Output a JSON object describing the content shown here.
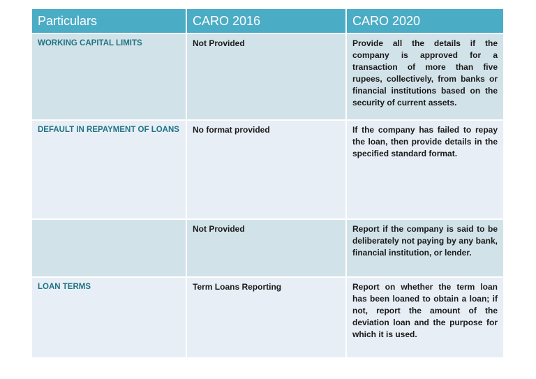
{
  "table": {
    "header": [
      "Particulars",
      "CARO 2016",
      "CARO 2020"
    ],
    "rows": [
      [
        "WORKING CAPITAL LIMITS",
        "Not Provided",
        "Provide all the details if the company is approved for a transaction of more than five rupees, collectively, from banks or financial institutions based on the security of current assets."
      ],
      [
        "DEFAULT IN REPAYMENT OF LOANS",
        "No format provided",
        "If the company has failed to repay the loan, then provide details in the specified standard format."
      ],
      [
        null,
        "Not Provided",
        "Report if the company is said to be deliberately not paying by any bank, financial institution, or lender."
      ],
      [
        "LOAN TERMS",
        "Term Loans Reporting",
        "Report on whether the term loan has been loaned to obtain a loan; if not, report the amount of the deviation loan and the purpose for which it is used."
      ]
    ]
  }
}
